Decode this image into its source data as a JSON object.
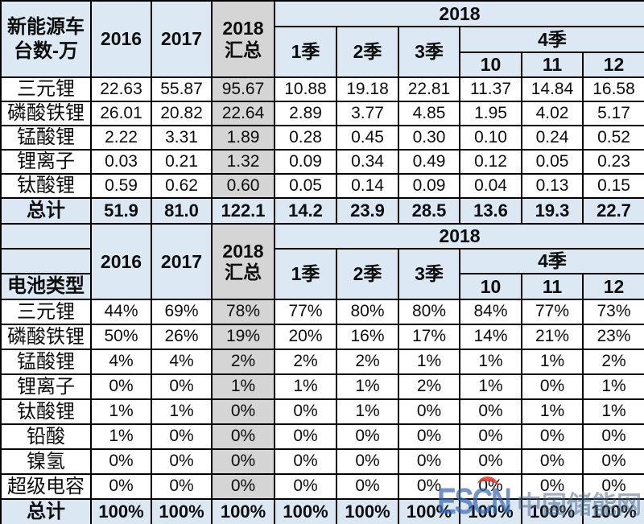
{
  "watermark": {
    "brand": "ESCN",
    "site_name": "中国储能网"
  },
  "colors": {
    "header_blue": "#DCE8F4",
    "total_row_blue": "#DBE7F3",
    "summary_gray": "#D5D5D5",
    "border": "#000000",
    "watermark_blue": "#3C6CB4",
    "watermark_red": "#DE3A30"
  },
  "chart_data": [
    {
      "type": "table",
      "header": {
        "corner": "新能源车台数-万",
        "years": [
          "2016",
          "2017"
        ],
        "total_col": "2018 汇总",
        "year_group": "2018",
        "quarters": [
          "1季",
          "2季",
          "3季"
        ],
        "q4": "4季",
        "months": [
          "10",
          "11",
          "12"
        ]
      },
      "rows": [
        {
          "label": "三元锂",
          "values": [
            "22.63",
            "55.87",
            "95.67",
            "10.88",
            "19.18",
            "22.81",
            "11.37",
            "14.84",
            "16.58"
          ]
        },
        {
          "label": "磷酸铁锂",
          "values": [
            "26.01",
            "20.82",
            "22.64",
            "2.89",
            "3.77",
            "4.85",
            "1.95",
            "4.02",
            "5.17"
          ]
        },
        {
          "label": "锰酸锂",
          "values": [
            "2.22",
            "3.31",
            "1.89",
            "0.28",
            "0.45",
            "0.30",
            "0.10",
            "0.24",
            "0.52"
          ]
        },
        {
          "label": "锂离子",
          "values": [
            "0.03",
            "0.21",
            "1.32",
            "0.09",
            "0.34",
            "0.49",
            "0.12",
            "0.05",
            "0.23"
          ]
        },
        {
          "label": "钛酸锂",
          "values": [
            "0.59",
            "0.62",
            "0.60",
            "0.05",
            "0.14",
            "0.09",
            "0.04",
            "0.13",
            "0.15"
          ]
        }
      ],
      "total_row": {
        "label": "总计",
        "values": [
          "51.9",
          "81.0",
          "122.1",
          "14.2",
          "23.9",
          "28.5",
          "13.6",
          "19.3",
          "22.7"
        ]
      }
    },
    {
      "type": "table",
      "header": {
        "corner": "电池类型",
        "years": [
          "2016",
          "2017"
        ],
        "total_col": "2018 汇总",
        "year_group": "2018",
        "quarters": [
          "1季",
          "2季",
          "3季"
        ],
        "q4": "4季",
        "months": [
          "10",
          "11",
          "12"
        ]
      },
      "rows": [
        {
          "label": "三元锂",
          "values": [
            "44%",
            "69%",
            "78%",
            "77%",
            "80%",
            "80%",
            "84%",
            "77%",
            "73%"
          ]
        },
        {
          "label": "磷酸铁锂",
          "values": [
            "50%",
            "26%",
            "19%",
            "20%",
            "16%",
            "17%",
            "14%",
            "21%",
            "23%"
          ]
        },
        {
          "label": "锰酸锂",
          "values": [
            "4%",
            "4%",
            "2%",
            "2%",
            "2%",
            "1%",
            "1%",
            "1%",
            "2%"
          ]
        },
        {
          "label": "锂离子",
          "values": [
            "0%",
            "0%",
            "1%",
            "1%",
            "1%",
            "2%",
            "1%",
            "0%",
            "1%"
          ]
        },
        {
          "label": "钛酸锂",
          "values": [
            "1%",
            "1%",
            "0%",
            "0%",
            "1%",
            "0%",
            "0%",
            "1%",
            "1%"
          ]
        },
        {
          "label": "铅酸",
          "values": [
            "1%",
            "0%",
            "0%",
            "0%",
            "0%",
            "0%",
            "0%",
            "0%",
            "0%"
          ]
        },
        {
          "label": "镍氢",
          "values": [
            "0%",
            "0%",
            "0%",
            "0%",
            "0%",
            "0%",
            "0%",
            "0%",
            "0%"
          ]
        },
        {
          "label": "超级电容",
          "values": [
            "0%",
            "0%",
            "0%",
            "0%",
            "0%",
            "0%",
            "0%",
            "0%",
            "0%"
          ]
        }
      ],
      "total_row": {
        "label": "总计",
        "values": [
          "100%",
          "100%",
          "100%",
          "100%",
          "100%",
          "100%",
          "100%",
          "100%",
          "100%"
        ]
      }
    }
  ]
}
